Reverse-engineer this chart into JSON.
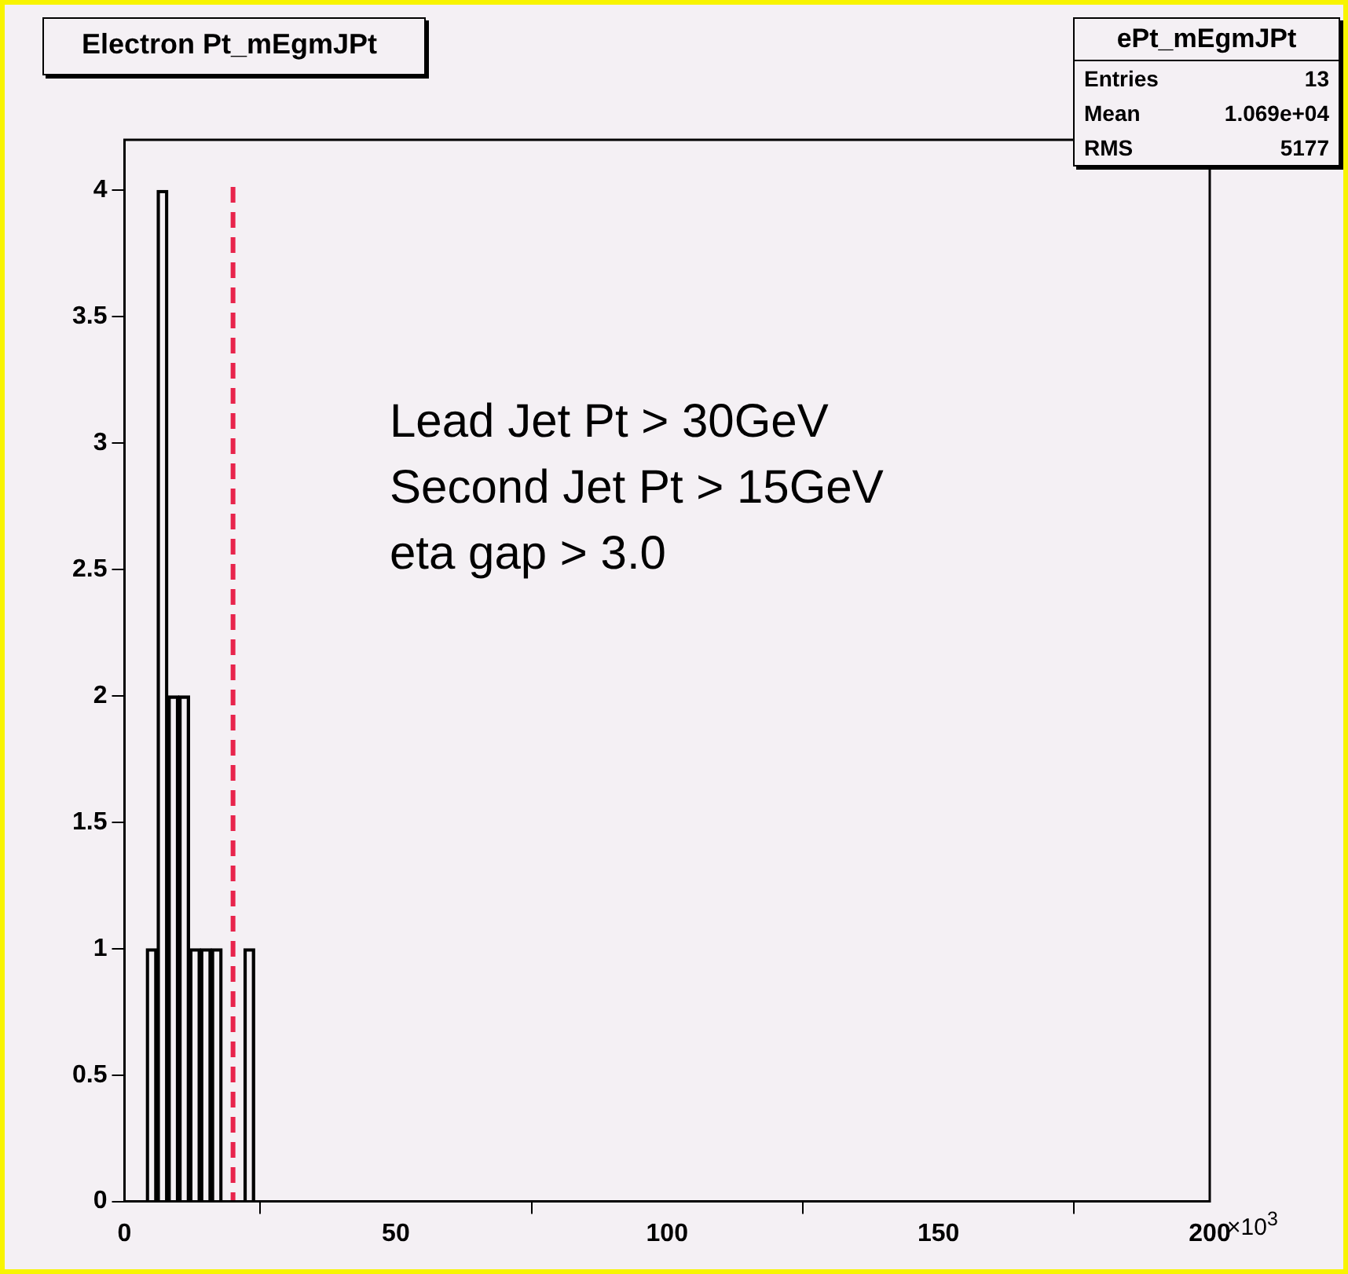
{
  "chart_data": {
    "type": "bar",
    "title": "Electron  Pt_mEgmJPt",
    "x": [
      1,
      3,
      5,
      7,
      9,
      11,
      13,
      15,
      17,
      19,
      21,
      23
    ],
    "values": [
      0,
      0,
      1,
      4,
      2,
      2,
      1,
      1,
      1,
      0,
      0,
      1
    ],
    "color": "#000000",
    "xlim": [
      0,
      200
    ],
    "xticks": [
      0,
      50,
      100,
      150,
      200
    ],
    "ylim": [
      0,
      4.2
    ],
    "yticks": [
      0,
      0.5,
      1,
      1.5,
      2,
      2.5,
      3,
      3.5,
      4
    ],
    "grid": false,
    "legend": false,
    "ref_lines": [
      {
        "axis": "x",
        "value": 20,
        "color": "#e8244c",
        "line_style": "dashed"
      }
    ],
    "annotations": [
      "Lead Jet Pt > 30GeV",
      "Second Jet Pt > 15GeV",
      "eta gap > 3.0",
      "×10$^{3}$",
      "ePt_mEgmJPt",
      "Entries",
      "13",
      "Mean",
      "1.069e+04",
      "RMS",
      "5177"
    ]
  }
}
